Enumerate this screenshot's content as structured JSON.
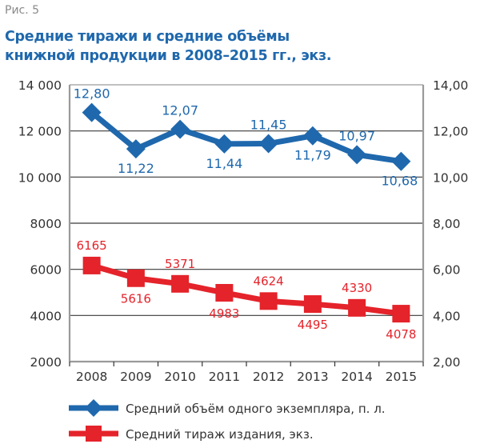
{
  "figure_label": "Рис. 5",
  "title_line1": "Средние тиражи и средние объёмы",
  "title_line2": "книжной продукции в 2008–2015 гг., экз.",
  "colors": {
    "blue": "#1f68ad",
    "red": "#e4232a",
    "grid": "#3a3a3a",
    "axis": "#9a9a9a",
    "text": "#333333"
  },
  "chart_data": {
    "type": "line",
    "title": "Средние тиражи и средние объёмы книжной продукции в 2008–2015 гг., экз.",
    "categories": [
      "2008",
      "2009",
      "2010",
      "2011",
      "2012",
      "2013",
      "2014",
      "2015"
    ],
    "y_left": {
      "ylim": [
        2000,
        14000
      ],
      "ticks": [
        2000,
        4000,
        6000,
        8000,
        10000,
        12000,
        14000
      ],
      "tick_labels": [
        "2000",
        "4000",
        "6000",
        "8000",
        "10 000",
        "12 000",
        "14 000"
      ]
    },
    "y_right": {
      "ylim": [
        2,
        14
      ],
      "ticks": [
        2,
        4,
        6,
        8,
        10,
        12,
        14
      ],
      "tick_labels": [
        "2,00",
        "4,00",
        "6,00",
        "8,00",
        "10,00",
        "12,00",
        "14,00"
      ]
    },
    "grid": true,
    "legend_position": "bottom",
    "series": [
      {
        "name": "Средний объём одного экземпляра, п. л.",
        "axis": "right",
        "marker": "diamond",
        "color": "#1f68ad",
        "values": [
          12.8,
          11.22,
          12.07,
          11.44,
          11.45,
          11.79,
          10.97,
          10.68
        ],
        "labels": [
          "12,80",
          "11,22",
          "12,07",
          "11,44",
          "11,45",
          "11,79",
          "10,97",
          "10,68"
        ],
        "label_pos": [
          "above",
          "below",
          "above",
          "below",
          "above",
          "below",
          "above",
          "below"
        ]
      },
      {
        "name": "Средний тираж издания, экз.",
        "axis": "left",
        "marker": "square",
        "color": "#e4232a",
        "values": [
          6165,
          5616,
          5371,
          4983,
          4624,
          4495,
          4330,
          4078
        ],
        "labels": [
          "6165",
          "5616",
          "5371",
          "4983",
          "4624",
          "4495",
          "4330",
          "4078"
        ],
        "label_pos": [
          "above",
          "below",
          "above",
          "below",
          "above",
          "below",
          "above",
          "below"
        ]
      }
    ]
  }
}
